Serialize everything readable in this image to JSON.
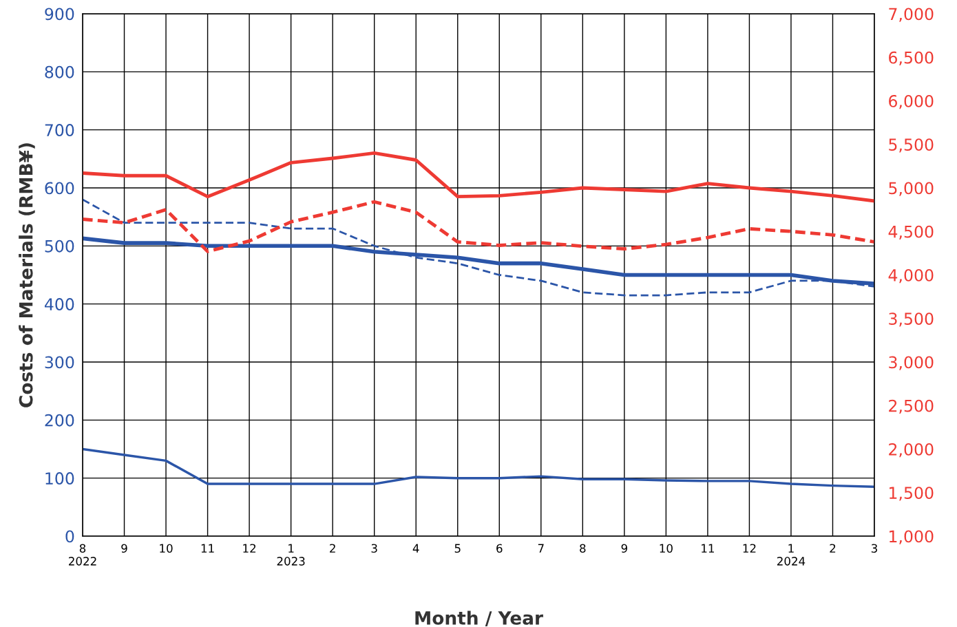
{
  "chart_data": {
    "type": "line",
    "xlabel": "Month / Year",
    "ylabel": "Costs of Materials (RMB¥)",
    "categories": [
      "8\n2022",
      "9",
      "10",
      "11",
      "12",
      "1\n2023",
      "2",
      "3",
      "4",
      "5",
      "6",
      "7",
      "8",
      "9",
      "10",
      "11",
      "12",
      "1\n2024",
      "2",
      "3"
    ],
    "series": [
      {
        "color": "#2b55a8",
        "line_style": "solid",
        "values": [
          513,
          505,
          505,
          500,
          500,
          500,
          500,
          490,
          485,
          480,
          470,
          470,
          460,
          450,
          450,
          450,
          450,
          450,
          440,
          435
        ]
      },
      {
        "color": "#2b55a8",
        "line_style": "dashed",
        "values": [
          580,
          540,
          540,
          540,
          540,
          530,
          530,
          500,
          480,
          470,
          450,
          440,
          420,
          415,
          415,
          420,
          420,
          440,
          440,
          430
        ]
      },
      {
        "color": "#2b55a8",
        "line_style": "solid",
        "values": [
          150,
          140,
          130,
          90,
          90,
          90,
          90,
          90,
          102,
          100,
          100,
          103,
          98,
          98,
          96,
          95,
          95,
          90,
          87,
          85
        ]
      },
      {
        "color": "#ee3a33",
        "line_style": "solid",
        "axis": "y2",
        "values": [
          5170,
          5140,
          5140,
          4900,
          5090,
          5290,
          5340,
          5400,
          5320,
          4900,
          4910,
          4950,
          5000,
          4980,
          4960,
          5050,
          5000,
          4960,
          4910,
          4850
        ]
      },
      {
        "color": "#ee3a33",
        "line_style": "dashed",
        "axis": "y2",
        "values": [
          4640,
          4600,
          4750,
          4270,
          4390,
          4610,
          4720,
          4840,
          4720,
          4380,
          4340,
          4370,
          4330,
          4300,
          4350,
          4430,
          4530,
          4500,
          4460,
          4380
        ]
      }
    ],
    "ylim": [
      0,
      900
    ],
    "yticks": [
      0,
      100,
      200,
      300,
      400,
      500,
      600,
      700,
      800,
      900
    ],
    "y2lim": [
      1000,
      7000
    ],
    "y2ticks": [
      {
        "value": 1000,
        "label": "1,000"
      },
      {
        "value": 1500,
        "label": "1,500"
      },
      {
        "value": 2000,
        "label": "2,000"
      },
      {
        "value": 2500,
        "label": "2,500"
      },
      {
        "value": 3000,
        "label": "3,000"
      },
      {
        "value": 3500,
        "label": "3,500"
      },
      {
        "value": 4000,
        "label": "4,000"
      },
      {
        "value": 4500,
        "label": "4,500"
      },
      {
        "value": 5000,
        "label": "5,000"
      },
      {
        "value": 5500,
        "label": "5,500"
      },
      {
        "value": 6000,
        "label": "6,000"
      },
      {
        "value": 6500,
        "label": "6,500"
      },
      {
        "value": 7000,
        "label": "7,000"
      }
    ],
    "grid": true,
    "marker": "none"
  }
}
